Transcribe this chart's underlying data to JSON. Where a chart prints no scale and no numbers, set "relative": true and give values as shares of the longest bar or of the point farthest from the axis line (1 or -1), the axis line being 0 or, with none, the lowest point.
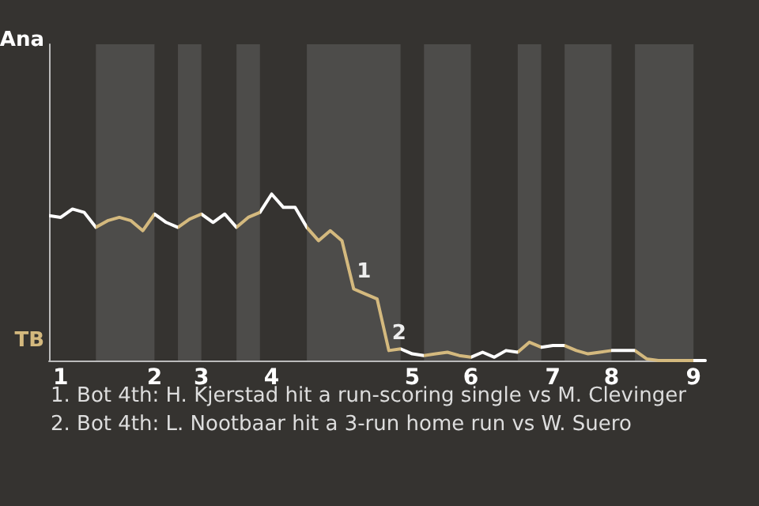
{
  "chart_data": {
    "type": "line",
    "relative": true,
    "categories": [
      null,
      "1",
      null,
      null,
      null,
      null,
      null,
      null,
      null,
      "2",
      null,
      null,
      null,
      "3",
      null,
      null,
      null,
      null,
      null,
      "4",
      null,
      null,
      null,
      null,
      null,
      null,
      null,
      null,
      null,
      null,
      null,
      "5",
      null,
      null,
      null,
      null,
      "6",
      null,
      null,
      null,
      null,
      null,
      null,
      "7",
      null,
      null,
      null,
      null,
      "8",
      null,
      null,
      null,
      null,
      null,
      null,
      "9",
      null
    ],
    "marker": "none",
    "line_style": "solid",
    "series": [
      {
        "color": "#ffffff",
        "values": [
          0.87,
          0.86,
          0.91,
          0.89,
          0.8,
          0.84,
          0.86,
          0.84,
          0.78,
          0.88,
          0.83,
          0.8,
          0.85,
          0.88,
          0.83,
          0.88,
          0.8,
          0.86,
          0.89,
          1,
          0.92,
          0.92,
          0.8,
          0.72,
          0.78,
          0.72,
          0.43,
          0.4,
          0.37,
          0.06,
          0.07,
          0.04,
          0.03,
          0.04,
          0.05,
          0.03,
          0.02,
          0.05,
          0.02,
          0.06,
          0.05,
          0.11,
          0.08,
          0.09,
          0.09,
          0.06,
          0.04,
          0.05,
          0.06,
          0.06,
          0.06,
          0.01,
          0,
          0,
          0,
          0,
          0
        ],
        "colors": [
          "#ffffff",
          "#ffffff",
          "#ffffff",
          "#ffffff",
          "#d4b97e",
          "#d4b97e",
          "#d4b97e",
          "#d4b97e",
          "#d4b97e",
          "#ffffff",
          "#ffffff",
          "#d4b97e",
          "#d4b97e",
          "#ffffff",
          "#ffffff",
          "#ffffff",
          "#d4b97e",
          "#d4b97e",
          "#ffffff",
          "#ffffff",
          "#ffffff",
          "#ffffff",
          "#d4b97e",
          "#d4b97e",
          "#d4b97e",
          "#d4b97e",
          "#d4b97e",
          "#d4b97e",
          "#d4b97e",
          "#d4b97e",
          "#ffffff",
          "#ffffff",
          "#d4b97e",
          "#d4b97e",
          "#d4b97e",
          "#d4b97e",
          "#ffffff",
          "#ffffff",
          "#ffffff",
          "#ffffff",
          "#d4b97e",
          "#d4b97e",
          "#ffffff",
          "#ffffff",
          "#d4b97e",
          "#d4b97e",
          "#d4b97e",
          "#d4b97e",
          "#ffffff",
          "#ffffff",
          "#d4b97e",
          "#d4b97e",
          "#d4b97e",
          "#d4b97e",
          "#d4b97e",
          "#ffffff",
          "#ffffff"
        ]
      }
    ],
    "annotations": [
      "Ana",
      "TB",
      {
        "text": "1",
        "y": 0.43
      },
      {
        "text": "2",
        "y": 0.06
      },
      "1. Bot 4th: H. Kjerstad hit a run-scoring single vs M. Clevinger",
      "2. Bot 4th: L. Nootbaar hit a 3-run home run vs W. Suero"
    ]
  }
}
